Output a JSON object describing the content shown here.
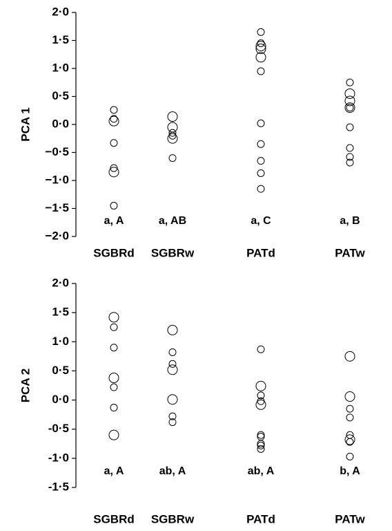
{
  "chart_data": [
    {
      "type": "scatter",
      "ylabel": "PCA 1",
      "categories": [
        "SGBRd",
        "SGBRw",
        "PATd",
        "PATw"
      ],
      "values": [
        [
          0.26,
          0.1,
          0.06,
          -0.33,
          -0.78,
          -0.85,
          -1.45
        ],
        [
          0.14,
          -0.05,
          -0.15,
          -0.2,
          -0.25,
          -0.6
        ],
        [
          1.65,
          1.45,
          1.4,
          1.35,
          1.2,
          0.95,
          0.02,
          -0.35,
          -0.65,
          -0.87,
          -1.15
        ],
        [
          0.75,
          0.55,
          0.42,
          0.3,
          0.3,
          -0.05,
          -0.42,
          -0.58,
          -0.68
        ]
      ],
      "sizes": [
        [
          1,
          1,
          2,
          1,
          1,
          2,
          1
        ],
        [
          2,
          2,
          1,
          1,
          2,
          1
        ],
        [
          1,
          1,
          2,
          2,
          2,
          1,
          1,
          1,
          1,
          1,
          1
        ],
        [
          1,
          2,
          2,
          2,
          1,
          1,
          1,
          1,
          1
        ]
      ],
      "annotations": [
        "a, A",
        "a, AB",
        "a, C",
        "a, B"
      ],
      "ylim": [
        -2,
        2
      ],
      "yticks": [
        {
          "value": 2,
          "label": "2·0"
        },
        {
          "value": 1.5,
          "label": "1·5"
        },
        {
          "value": 1,
          "label": "1·0"
        },
        {
          "value": 0.5,
          "label": "0·5"
        },
        {
          "value": 0,
          "label": "0·0"
        },
        {
          "value": -0.5,
          "label": "−0·5"
        },
        {
          "value": -1,
          "label": "−1·0"
        },
        {
          "value": -1.5,
          "label": "−1·5"
        },
        {
          "value": -2,
          "label": "−2·0"
        }
      ]
    },
    {
      "type": "scatter",
      "ylabel": "PCA 2",
      "categories": [
        "SGBRd",
        "SGBRw",
        "PATd",
        "PATw"
      ],
      "values": [
        [
          1.42,
          1.25,
          0.9,
          0.38,
          0.22,
          -0.13,
          -0.6
        ],
        [
          1.2,
          0.82,
          0.62,
          0.52,
          0.01,
          -0.28,
          -0.38
        ],
        [
          0.87,
          0.24,
          0.08,
          -0.02,
          -0.08,
          -0.6,
          -0.63,
          -0.75,
          -0.78,
          -0.84
        ],
        [
          0.75,
          0.06,
          -0.15,
          -0.3,
          -0.6,
          -0.68,
          -0.72,
          -0.97
        ]
      ],
      "sizes": [
        [
          2,
          1,
          1,
          2,
          1,
          1,
          2
        ],
        [
          2,
          1,
          1,
          2,
          2,
          1,
          1
        ],
        [
          1,
          2,
          1,
          1,
          2,
          1,
          1,
          1,
          1,
          1
        ],
        [
          2,
          2,
          1,
          1,
          1,
          2,
          1,
          1
        ]
      ],
      "annotations": [
        "a, A",
        "ab, A",
        "ab, A",
        "b, A"
      ],
      "ylim": [
        -1.5,
        2
      ],
      "yticks": [
        {
          "value": 2,
          "label": "2·0"
        },
        {
          "value": 1.5,
          "label": "1·5"
        },
        {
          "value": 1,
          "label": "1·0"
        },
        {
          "value": 0.5,
          "label": "0·5"
        },
        {
          "value": 0,
          "label": "0·0"
        },
        {
          "value": -0.5,
          "label": "-0·5"
        },
        {
          "value": -1,
          "label": "-1·0"
        },
        {
          "value": -1.5,
          "label": "-1·5"
        }
      ]
    }
  ]
}
